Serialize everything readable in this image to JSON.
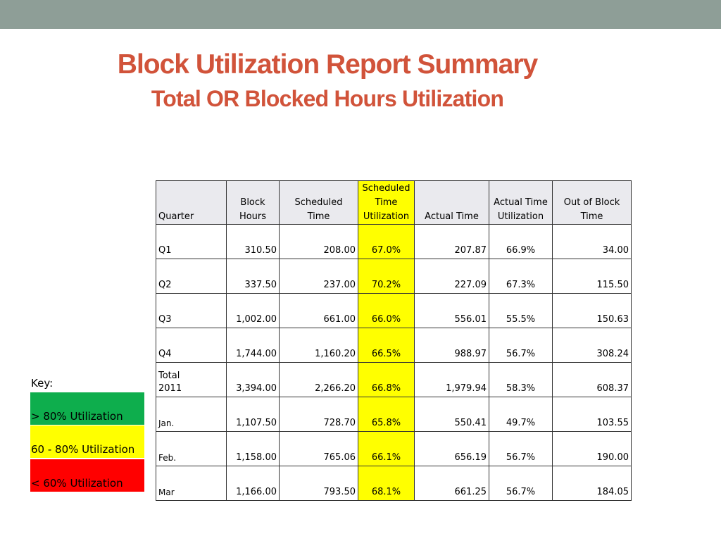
{
  "title": "Block Utilization Report Summary",
  "subtitle": "Total OR Blocked Hours Utilization",
  "colors": {
    "top_bar": "#8e9e97",
    "title": "#d1533a",
    "highlight_yellow": "#ffff00",
    "key_green": "#0eae4d",
    "key_yellow": "#ffff00",
    "key_red": "#ff0000"
  },
  "table": {
    "headers": {
      "quarter": "Quarter",
      "block_hours_1": "Block",
      "block_hours_2": "Hours",
      "scheduled_time_1": "Scheduled",
      "scheduled_time_2": "Time",
      "sched_util_1": "Scheduled",
      "sched_util_2": "Time",
      "sched_util_3": "Utilization",
      "actual_time": "Actual Time",
      "actual_util_1": "Actual Time",
      "actual_util_2": "Utilization",
      "out_block_1": "Out of Block",
      "out_block_2": "Time"
    },
    "rows": [
      {
        "quarter": "Q1",
        "block_hours": "310.50",
        "scheduled_time": "208.00",
        "sched_util": "67.0%",
        "actual_time": "207.87",
        "actual_util": "66.9%",
        "out_of_block": "34.00"
      },
      {
        "quarter": "Q2",
        "block_hours": "337.50",
        "scheduled_time": "237.00",
        "sched_util": "70.2%",
        "actual_time": "227.09",
        "actual_util": "67.3%",
        "out_of_block": "115.50"
      },
      {
        "quarter": "Q3",
        "block_hours": "1,002.00",
        "scheduled_time": "661.00",
        "sched_util": "66.0%",
        "actual_time": "556.01",
        "actual_util": "55.5%",
        "out_of_block": "150.63"
      },
      {
        "quarter": "Q4",
        "block_hours": "1,744.00",
        "scheduled_time": "1,160.20",
        "sched_util": "66.5%",
        "actual_time": "988.97",
        "actual_util": "56.7%",
        "out_of_block": "308.24"
      },
      {
        "quarter_1": "Total",
        "quarter_2": "2011",
        "block_hours": "3,394.00",
        "scheduled_time": "2,266.20",
        "sched_util": "66.8%",
        "actual_time": "1,979.94",
        "actual_util": "58.3%",
        "out_of_block": "608.37"
      },
      {
        "quarter": "Jan.",
        "block_hours": "1,107.50",
        "scheduled_time": "728.70",
        "sched_util": "65.8%",
        "actual_time": "550.41",
        "actual_util": "49.7%",
        "out_of_block": "103.55"
      },
      {
        "quarter": "Feb.",
        "block_hours": "1,158.00",
        "scheduled_time": "765.06",
        "sched_util": "66.1%",
        "actual_time": "656.19",
        "actual_util": "56.7%",
        "out_of_block": "190.00"
      },
      {
        "quarter": "Mar",
        "block_hours": "1,166.00",
        "scheduled_time": "793.50",
        "sched_util": "68.1%",
        "actual_time": "661.25",
        "actual_util": "56.7%",
        "out_of_block": "184.05"
      }
    ]
  },
  "key": {
    "label": "Key:",
    "green": "> 80% Utilization",
    "yellow": "60 - 80% Utilization",
    "red": "< 60% Utilization"
  }
}
